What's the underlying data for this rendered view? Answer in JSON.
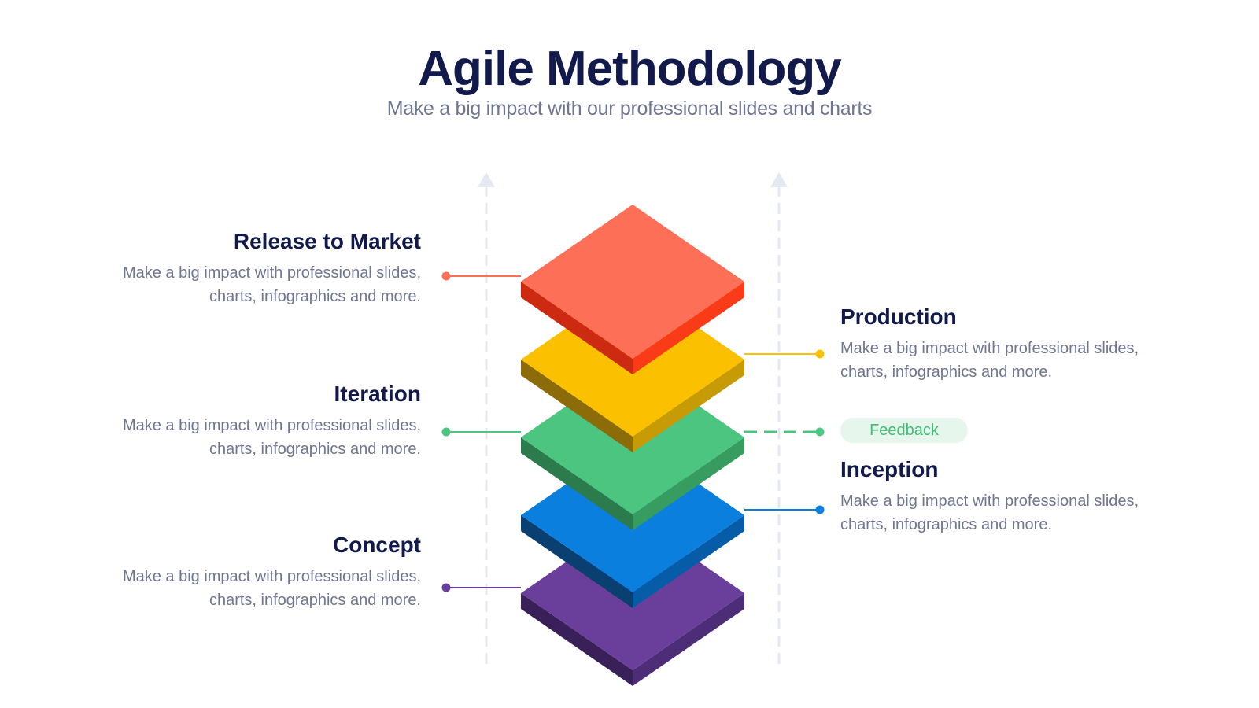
{
  "title": "Agile Methodology",
  "subtitle": "Make a big impact with our professional slides and charts",
  "layers": [
    {
      "key": "release",
      "title": "Release to Market",
      "description": "Make a big impact with professional slides, charts, infographics and more.",
      "side": "left",
      "color_top": "#fd6f57",
      "color_left": "#cc2a11",
      "color_right": "#fa3b17"
    },
    {
      "key": "production",
      "title": "Production",
      "description": "Make a big impact with professional slides, charts, infographics and more.",
      "side": "right",
      "color_top": "#fbc000",
      "color_left": "#8c6b09",
      "color_right": "#c79b06"
    },
    {
      "key": "iteration",
      "title": "Iteration",
      "description": "Make a big impact with professional slides, charts, infographics and more.",
      "side": "left",
      "color_top": "#4cc580",
      "color_left": "#2c7b4d",
      "color_right": "#379c60"
    },
    {
      "key": "inception",
      "title": "Inception",
      "description": "Make a big impact with professional slides, charts, infographics and more.",
      "side": "right",
      "color_top": "#0a7fde",
      "color_left": "#0a3f72",
      "color_right": "#075ca8"
    },
    {
      "key": "concept",
      "title": "Concept",
      "description": "Make a big impact with professional slides, charts, infographics and more.",
      "side": "left",
      "color_top": "#6a3f9b",
      "color_left": "#3a2058",
      "color_right": "#4e2d78"
    }
  ],
  "feedback_label": "Feedback",
  "colors": {
    "heading": "#111a4a",
    "muted_text": "#6f7691",
    "guide_line": "#e4e8f0",
    "feedback_pill_bg": "#e6f6ec",
    "feedback_pill_text": "#3dbf75"
  }
}
